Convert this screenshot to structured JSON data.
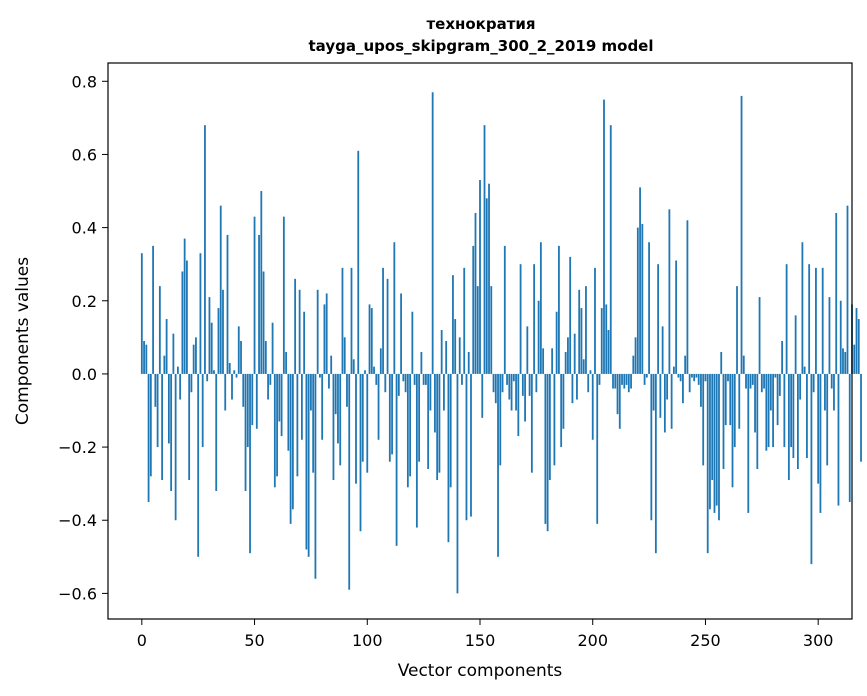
{
  "chart_data": {
    "type": "bar",
    "title": "технократия",
    "subtitle": "tayga_upos_skipgram_300_2_2019 model",
    "xlabel": "Vector components",
    "ylabel": "Components values",
    "xlim": [
      -15,
      315
    ],
    "ylim": [
      -0.67,
      0.85
    ],
    "xticks": [
      0,
      50,
      100,
      150,
      200,
      250,
      300
    ],
    "yticks": [
      -0.6,
      -0.4,
      -0.2,
      0.0,
      0.2,
      0.4,
      0.6,
      0.8
    ],
    "xtick_labels": [
      "0",
      "50",
      "100",
      "150",
      "200",
      "250",
      "300"
    ],
    "ytick_labels": [
      "−0.6",
      "−0.4",
      "−0.2",
      "0.0",
      "0.2",
      "0.4",
      "0.6",
      "0.8"
    ],
    "grid": false,
    "bar_color": "#1f77b4",
    "values": [
      0.33,
      0.09,
      0.08,
      -0.35,
      -0.28,
      0.35,
      -0.09,
      -0.2,
      0.24,
      -0.29,
      0.05,
      0.15,
      -0.19,
      -0.32,
      0.11,
      -0.4,
      0.02,
      -0.07,
      0.28,
      0.37,
      0.31,
      -0.29,
      -0.05,
      0.08,
      0.1,
      -0.5,
      0.33,
      -0.2,
      0.68,
      -0.02,
      0.21,
      0.14,
      0.01,
      -0.32,
      0.18,
      0.46,
      0.23,
      -0.1,
      0.38,
      0.03,
      -0.07,
      0.01,
      -0.01,
      0.13,
      0.09,
      -0.09,
      -0.32,
      -0.2,
      -0.49,
      -0.14,
      0.43,
      -0.15,
      0.38,
      0.5,
      0.28,
      0.09,
      -0.07,
      -0.03,
      0.14,
      -0.31,
      -0.28,
      -0.13,
      -0.17,
      0.43,
      0.06,
      -0.21,
      -0.41,
      -0.37,
      0.26,
      -0.28,
      0.23,
      -0.18,
      0.17,
      -0.48,
      -0.5,
      -0.1,
      -0.27,
      -0.56,
      0.23,
      -0.01,
      -0.18,
      0.19,
      0.22,
      -0.04,
      0.05,
      -0.29,
      -0.11,
      -0.19,
      -0.25,
      0.29,
      0.1,
      -0.09,
      -0.59,
      0.29,
      0.04,
      -0.3,
      0.61,
      -0.43,
      -0.24,
      0.01,
      -0.27,
      0.19,
      0.18,
      0.02,
      -0.03,
      -0.18,
      0.07,
      0.29,
      -0.05,
      0.26,
      -0.24,
      -0.22,
      0.36,
      -0.47,
      -0.06,
      0.22,
      -0.02,
      -0.05,
      -0.31,
      -0.28,
      0.17,
      -0.03,
      -0.42,
      -0.24,
      0.06,
      -0.03,
      -0.03,
      -0.26,
      -0.1,
      0.77,
      -0.16,
      -0.29,
      -0.27,
      0.12,
      -0.1,
      0.09,
      -0.46,
      -0.31,
      0.27,
      0.15,
      -0.6,
      0.1,
      -0.03,
      0.29,
      -0.4,
      0.06,
      -0.39,
      0.35,
      0.44,
      0.24,
      0.53,
      -0.12,
      0.68,
      0.48,
      0.52,
      0.24,
      -0.05,
      -0.08,
      -0.5,
      -0.25,
      -0.05,
      0.35,
      -0.03,
      -0.07,
      -0.1,
      -0.02,
      -0.1,
      -0.17,
      0.3,
      -0.06,
      -0.13,
      0.13,
      -0.06,
      -0.27,
      0.3,
      -0.05,
      0.2,
      0.36,
      0.07,
      -0.41,
      -0.43,
      -0.29,
      0.07,
      -0.25,
      0.17,
      0.35,
      -0.2,
      -0.15,
      0.06,
      0.1,
      0.32,
      -0.08,
      0.11,
      -0.07,
      0.23,
      0.18,
      0.04,
      0.24,
      -0.05,
      0.01,
      -0.18,
      0.29,
      -0.41,
      -0.03,
      0.18,
      0.75,
      0.19,
      0.12,
      0.68,
      -0.04,
      -0.04,
      -0.11,
      -0.15,
      -0.03,
      -0.04,
      -0.03,
      -0.05,
      -0.04,
      0.05,
      0.1,
      0.4,
      0.51,
      0.41,
      -0.03,
      -0.01,
      0.36,
      -0.4,
      -0.1,
      -0.49,
      0.3,
      -0.12,
      0.13,
      -0.16,
      -0.07,
      0.45,
      -0.15,
      0.02,
      0.31,
      -0.01,
      -0.02,
      -0.08,
      0.05,
      0.42,
      -0.05,
      -0.01,
      -0.02,
      -0.01,
      -0.03,
      -0.09,
      -0.25,
      -0.02,
      -0.49,
      -0.37,
      -0.29,
      -0.38,
      -0.36,
      -0.4,
      0.06,
      -0.26,
      -0.14,
      -0.02,
      -0.14,
      -0.31,
      -0.2,
      0.24,
      -0.15,
      0.76,
      0.05,
      -0.04,
      -0.38,
      -0.04,
      -0.03,
      -0.16,
      -0.26,
      0.21,
      -0.05,
      -0.04,
      -0.21,
      -0.2,
      -0.1,
      -0.2,
      -0.01,
      -0.14,
      -0.06,
      0.09,
      -0.2,
      0.3,
      -0.29,
      -0.2,
      -0.23,
      0.16,
      -0.26,
      -0.07,
      0.36,
      0.02,
      -0.23,
      0.3,
      -0.52,
      -0.05,
      0.29,
      -0.3,
      -0.38,
      0.29,
      -0.1,
      -0.25,
      0.21,
      -0.04,
      -0.1,
      0.44,
      -0.36,
      0.2,
      0.07,
      0.06,
      0.46,
      -0.35,
      0.19,
      0.08,
      0.18,
      0.15,
      -0.24
    ]
  }
}
